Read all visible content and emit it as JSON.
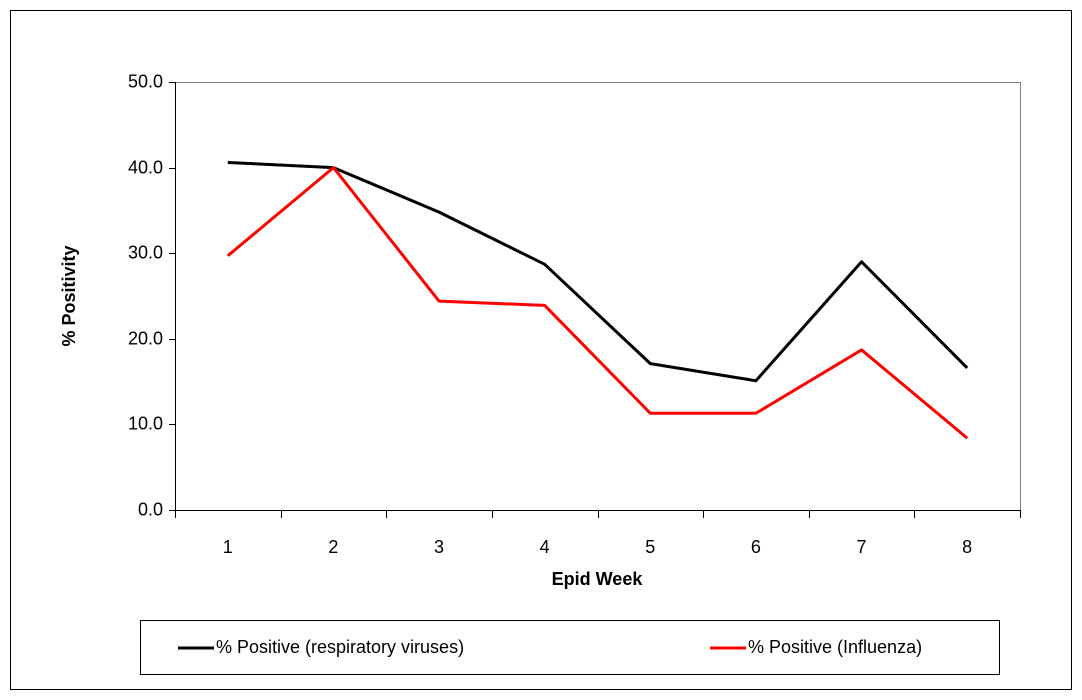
{
  "chart_data": {
    "type": "line",
    "x_label": "Epid Week",
    "y_label": "% Positivity",
    "categories": [
      "1",
      "2",
      "3",
      "4",
      "5",
      "6",
      "7",
      "8"
    ],
    "series": [
      {
        "name": "% Positive (respiratory viruses)",
        "color": "#000000",
        "values": [
          40.6,
          40.0,
          34.8,
          28.7,
          17.1,
          15.1,
          29.0,
          16.6
        ]
      },
      {
        "name": "% Positive (Influenza)",
        "color": "#ff0000",
        "values": [
          29.7,
          40.0,
          24.4,
          23.9,
          11.3,
          11.3,
          18.7,
          8.4
        ]
      }
    ],
    "ylim": [
      0,
      50
    ],
    "yticks": [
      {
        "value": 0,
        "label": "0.0"
      },
      {
        "value": 10,
        "label": "10.0"
      },
      {
        "value": 20,
        "label": "20.0"
      },
      {
        "value": 30,
        "label": "30.0"
      },
      {
        "value": 40,
        "label": "40.0"
      },
      {
        "value": 50,
        "label": "50.0"
      }
    ],
    "grid": false,
    "legend": "bottom"
  }
}
